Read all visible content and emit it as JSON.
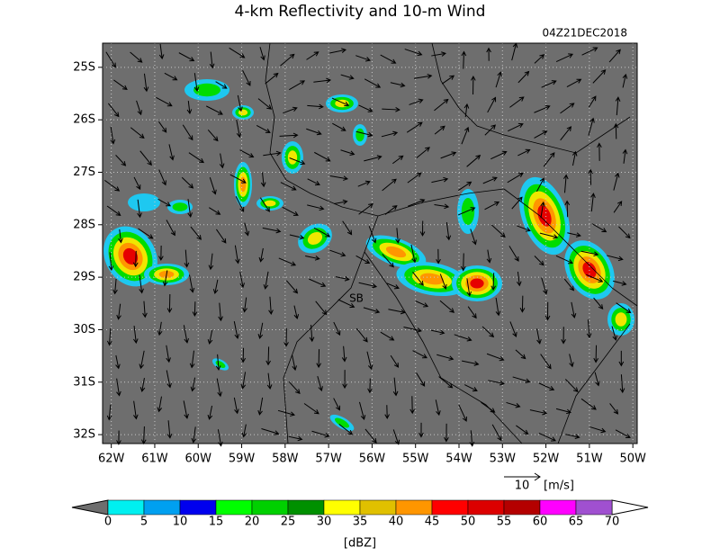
{
  "title": "4-km Reflectivity and 10-m Wind",
  "timestamp": "04Z21DEC2018",
  "map": {
    "lon_lim": [
      -62.2,
      -49.9
    ],
    "lat_lim": [
      -32.17,
      -24.54
    ],
    "lat_ticks": [
      {
        "value": -25,
        "label": "25S"
      },
      {
        "value": -26,
        "label": "26S"
      },
      {
        "value": -27,
        "label": "27S"
      },
      {
        "value": -28,
        "label": "28S"
      },
      {
        "value": -29,
        "label": "29S"
      },
      {
        "value": -30,
        "label": "30S"
      },
      {
        "value": -31,
        "label": "31S"
      },
      {
        "value": -32,
        "label": "32S"
      }
    ],
    "lon_ticks": [
      {
        "value": -62,
        "label": "62W"
      },
      {
        "value": -61,
        "label": "61W"
      },
      {
        "value": -60,
        "label": "60W"
      },
      {
        "value": -59,
        "label": "59W"
      },
      {
        "value": -58,
        "label": "58W"
      },
      {
        "value": -57,
        "label": "57W"
      },
      {
        "value": -56,
        "label": "56W"
      },
      {
        "value": -55,
        "label": "55W"
      },
      {
        "value": -54,
        "label": "54W"
      },
      {
        "value": -53,
        "label": "53W"
      },
      {
        "value": -52,
        "label": "52W"
      },
      {
        "value": -51,
        "label": "51W"
      },
      {
        "value": -50,
        "label": "50W"
      }
    ],
    "grid": true,
    "annotation": "SB"
  },
  "vector_reference": {
    "value": 10,
    "unit": "[m/s]"
  },
  "colorbar": {
    "ticks": [
      0,
      5,
      10,
      15,
      20,
      25,
      30,
      35,
      40,
      45,
      50,
      55,
      60,
      65,
      70
    ],
    "colors": [
      "#00f0f0",
      "#00a0f0",
      "#0000ee",
      "#00ff00",
      "#00d000",
      "#009000",
      "#ffff00",
      "#e0c000",
      "#ff9600",
      "#ff0000",
      "#dc0000",
      "#b40000",
      "#ff00ff",
      "#a050d0"
    ],
    "unit": "[dBZ]"
  }
}
